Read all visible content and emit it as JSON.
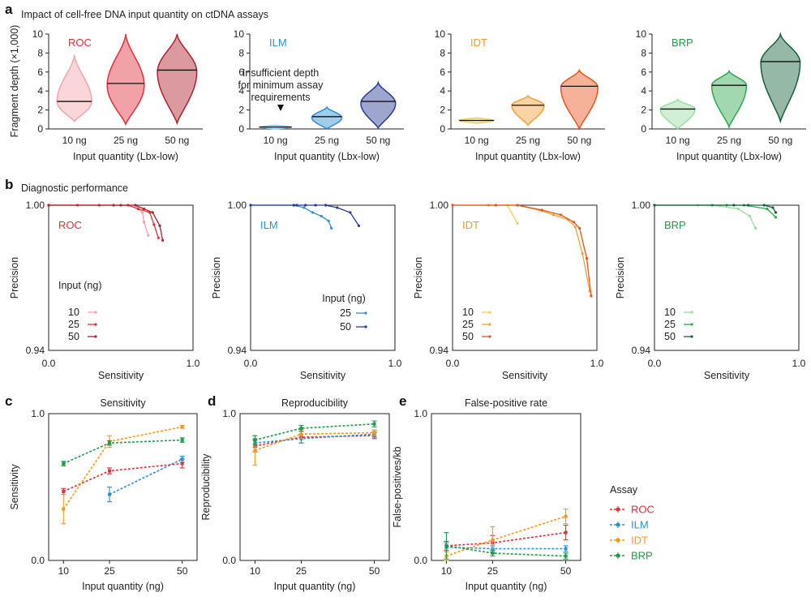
{
  "figure": {
    "panel_letters": {
      "a": "a",
      "b": "b",
      "c": "c",
      "d": "d",
      "e": "e"
    },
    "panel_a_title": "Impact of cell-free DNA input quantity on ctDNA assays",
    "panel_b_title": "Diagnostic performance",
    "violin_ylabel": "Fragment depth (×1,000)",
    "violin_xlabel": "Input quantity (Lbx-low)",
    "pr_xlabel": "Sensitivity",
    "pr_ylabel": "Precision",
    "pr_legend_title": "Input (ng)",
    "line_xlabel": "Input quantity (ng)",
    "insufficient_note": [
      "Insufficient depth",
      "for minimum assay",
      "requirements"
    ],
    "assay_legend_title": "Assay"
  },
  "colors": {
    "ROC": [
      "#f4a3a8",
      "#e0303a",
      "#b0202c"
    ],
    "ILM": [
      "#8ccbee",
      "#2f8fd0",
      "#283a96"
    ],
    "IDT": [
      "#f6cf55",
      "#f2a13a",
      "#e8541c"
    ],
    "BRP": [
      "#9adba2",
      "#2fa84f",
      "#16613a"
    ],
    "line": {
      "ROC": "#e0303a",
      "ILM": "#2f8fd0",
      "IDT": "#f29a1a",
      "BRP": "#1f9a4a"
    }
  },
  "chart_data": [
    {
      "type": "violin",
      "panel": "a",
      "assays": [
        "ROC",
        "ILM",
        "IDT",
        "BRP"
      ],
      "categories": [
        "10 ng",
        "25 ng",
        "50 ng"
      ],
      "ylim": [
        0,
        10
      ],
      "yticks": [
        0,
        2,
        4,
        6,
        8,
        10
      ],
      "ylabel": "Fragment depth (×1,000)",
      "xlabel": "Input quantity (Lbx-low)",
      "series": [
        {
          "name": "ROC",
          "violins": [
            {
              "min": 0.8,
              "max": 7.8,
              "median": 2.9,
              "mode": 2.9,
              "halfwidth": 0.75
            },
            {
              "min": 0.5,
              "max": 10.0,
              "median": 4.8,
              "mode": 4.6,
              "halfwidth": 0.8
            },
            {
              "min": 0.6,
              "max": 10.0,
              "median": 6.2,
              "mode": 6.0,
              "halfwidth": 0.85
            }
          ]
        },
        {
          "name": "ILM",
          "violins": [
            {
              "min": 0.0,
              "max": 0.4,
              "median": 0.2,
              "mode": 0.2,
              "halfwidth": 0.7
            },
            {
              "min": 0.0,
              "max": 2.3,
              "median": 1.3,
              "mode": 1.2,
              "halfwidth": 0.65
            },
            {
              "min": 0.1,
              "max": 4.9,
              "median": 2.9,
              "mode": 2.7,
              "halfwidth": 0.75
            }
          ]
        },
        {
          "name": "IDT",
          "violins": [
            {
              "min": 0.6,
              "max": 1.2,
              "median": 0.9,
              "mode": 0.9,
              "halfwidth": 0.75
            },
            {
              "min": 0.4,
              "max": 3.5,
              "median": 2.5,
              "mode": 2.5,
              "halfwidth": 0.7
            },
            {
              "min": 0.0,
              "max": 6.2,
              "median": 4.5,
              "mode": 4.4,
              "halfwidth": 0.8
            }
          ]
        },
        {
          "name": "BRP",
          "violins": [
            {
              "min": 0.0,
              "max": 3.1,
              "median": 2.1,
              "mode": 2.1,
              "halfwidth": 0.75
            },
            {
              "min": 0.2,
              "max": 6.1,
              "median": 4.6,
              "mode": 4.6,
              "halfwidth": 0.75
            },
            {
              "min": 0.8,
              "max": 10.0,
              "median": 7.1,
              "mode": 7.0,
              "halfwidth": 0.85
            }
          ]
        }
      ]
    },
    {
      "type": "line",
      "panel": "b",
      "title": "Diagnostic performance",
      "xlabel": "Sensitivity",
      "ylabel": "Precision",
      "xlim": [
        0,
        1
      ],
      "ylim": [
        0.94,
        1.0
      ],
      "xticks": [
        "0.0",
        "1.0"
      ],
      "yticks": [
        "1.00",
        "0.94"
      ],
      "series": [
        {
          "assay": "ROC",
          "input": "10",
          "x": [
            0.0,
            0.6,
            0.65,
            0.66,
            0.69
          ],
          "y": [
            1.0,
            1.0,
            0.997,
            0.993,
            0.9875
          ]
        },
        {
          "assay": "ROC",
          "input": "25",
          "x": [
            0.0,
            0.2,
            0.35,
            0.55,
            0.62,
            0.7,
            0.73,
            0.76
          ],
          "y": [
            1.0,
            1.0,
            1.0,
            1.0,
            0.9985,
            0.997,
            0.992,
            0.9865
          ]
        },
        {
          "assay": "ROC",
          "input": "50",
          "x": [
            0.0,
            0.45,
            0.5,
            0.6,
            0.66,
            0.72,
            0.77,
            0.79
          ],
          "y": [
            1.0,
            1.0,
            1.0,
            1.0,
            0.9985,
            0.997,
            0.9915,
            0.9855
          ]
        },
        {
          "assay": "ILM",
          "input": "25",
          "x": [
            0.0,
            0.3,
            0.37,
            0.43,
            0.49,
            0.54,
            0.56
          ],
          "y": [
            1.0,
            1.0,
            0.999,
            0.997,
            0.9955,
            0.9935,
            0.9905
          ]
        },
        {
          "assay": "ILM",
          "input": "50",
          "x": [
            0.0,
            0.3,
            0.32,
            0.38,
            0.45,
            0.52,
            0.6,
            0.69,
            0.75
          ],
          "y": [
            1.0,
            1.0,
            1.0,
            1.0,
            1.0,
            1.0,
            0.999,
            0.997,
            0.9915
          ]
        },
        {
          "assay": "IDT",
          "input": "10",
          "x": [
            0.0,
            0.3,
            0.38,
            0.45
          ],
          "y": [
            1.0,
            1.0,
            1.0,
            0.9925
          ]
        },
        {
          "assay": "IDT",
          "input": "25",
          "x": [
            0.0,
            0.25,
            0.45,
            0.6,
            0.7,
            0.8,
            0.85,
            0.9,
            0.95
          ],
          "y": [
            1.0,
            1.0,
            1.0,
            0.998,
            0.996,
            0.994,
            0.991,
            0.98,
            0.9645
          ]
        },
        {
          "assay": "IDT",
          "input": "50",
          "x": [
            0.0,
            0.3,
            0.45,
            0.62,
            0.75,
            0.84,
            0.88,
            0.93,
            0.96
          ],
          "y": [
            1.0,
            1.0,
            1.0,
            0.998,
            0.996,
            0.993,
            0.9905,
            0.978,
            0.9625
          ]
        },
        {
          "assay": "BRP",
          "input": "10",
          "x": [
            0.0,
            0.3,
            0.4,
            0.58,
            0.66,
            0.7
          ],
          "y": [
            1.0,
            1.0,
            1.0,
            0.9985,
            0.9955,
            0.9905
          ]
        },
        {
          "assay": "BRP",
          "input": "25",
          "x": [
            0.0,
            0.4,
            0.5,
            0.62,
            0.78,
            0.84
          ],
          "y": [
            1.0,
            1.0,
            1.0,
            1.0,
            0.9985,
            0.995
          ]
        },
        {
          "assay": "BRP",
          "input": "50",
          "x": [
            0.0,
            0.55,
            0.65,
            0.76,
            0.82,
            0.84
          ],
          "y": [
            1.0,
            1.0,
            1.0,
            1.0,
            0.999,
            0.997
          ]
        }
      ],
      "legends": {
        "ROC": [
          "10",
          "25",
          "50"
        ],
        "ILM": [
          "25",
          "50"
        ],
        "IDT": [
          "10",
          "25",
          "50"
        ],
        "BRP": [
          "10",
          "25",
          "50"
        ]
      }
    },
    {
      "type": "line",
      "panel": "c",
      "title": "Sensitivity",
      "ylabel": "Sensitivity",
      "xlabel": "Input quantity (ng)",
      "xticks": [
        "10",
        "25",
        "50"
      ],
      "yticks": [
        "0.0",
        "1.0"
      ],
      "ylim": [
        0,
        1
      ],
      "series": [
        {
          "name": "ROC",
          "x": [
            10,
            25,
            50
          ],
          "y": [
            0.47,
            0.61,
            0.66
          ],
          "err": [
            0.02,
            0.02,
            0.03
          ]
        },
        {
          "name": "ILM",
          "x": [
            25,
            50
          ],
          "y": [
            0.45,
            0.69
          ],
          "err": [
            0.05,
            0.02
          ]
        },
        {
          "name": "IDT",
          "x": [
            10,
            25,
            50
          ],
          "y": [
            0.35,
            0.81,
            0.91
          ],
          "err": [
            0.1,
            0.04,
            0.01
          ]
        },
        {
          "name": "BRP",
          "x": [
            10,
            25,
            50
          ],
          "y": [
            0.66,
            0.8,
            0.82
          ],
          "err": [
            0.015,
            0.015,
            0.015
          ]
        }
      ]
    },
    {
      "type": "line",
      "panel": "d",
      "title": "Reproducibility",
      "ylabel": "Reproducibility",
      "xlabel": "Input quantity (ng)",
      "xticks": [
        "10",
        "25",
        "50"
      ],
      "yticks": [
        "0.0",
        "1.0"
      ],
      "ylim": [
        0,
        1
      ],
      "series": [
        {
          "name": "ROC",
          "x": [
            10,
            25,
            50
          ],
          "y": [
            0.78,
            0.84,
            0.85
          ],
          "err": [
            0.04,
            0.04,
            0.02
          ]
        },
        {
          "name": "ILM",
          "x": [
            10,
            25,
            50
          ],
          "y": [
            0.8,
            0.83,
            0.86
          ],
          "err": [
            0.03,
            0.03,
            0.02
          ]
        },
        {
          "name": "IDT",
          "x": [
            10,
            25,
            50
          ],
          "y": [
            0.75,
            0.86,
            0.87
          ],
          "err": [
            0.1,
            0.03,
            0.02
          ]
        },
        {
          "name": "BRP",
          "x": [
            10,
            25,
            50
          ],
          "y": [
            0.82,
            0.9,
            0.93
          ],
          "err": [
            0.03,
            0.02,
            0.02
          ]
        }
      ]
    },
    {
      "type": "line",
      "panel": "e",
      "title": "False-positive rate",
      "ylabel": "False-positives/kb",
      "xlabel": "Input quantity (ng)",
      "xticks": [
        "10",
        "25",
        "50"
      ],
      "yticks": [
        "0.0",
        "1.0"
      ],
      "ylim": [
        0,
        1
      ],
      "series": [
        {
          "name": "ROC",
          "x": [
            10,
            25,
            50
          ],
          "y": [
            0.1,
            0.12,
            0.19
          ],
          "err": [
            0.03,
            0.05,
            0.05
          ]
        },
        {
          "name": "ILM",
          "x": [
            10,
            25,
            50
          ],
          "y": [
            0.09,
            0.08,
            0.08
          ],
          "err": [
            0.03,
            0.02,
            0.02
          ]
        },
        {
          "name": "IDT",
          "x": [
            10,
            25,
            50
          ],
          "y": [
            0.03,
            0.14,
            0.3
          ],
          "err": [
            0.03,
            0.09,
            0.05
          ]
        },
        {
          "name": "BRP",
          "x": [
            10,
            25,
            50
          ],
          "y": [
            0.1,
            0.05,
            0.03
          ],
          "err": [
            0.09,
            0.02,
            0.02
          ]
        }
      ]
    }
  ],
  "assay_legend": [
    "ROC",
    "ILM",
    "IDT",
    "BRP"
  ]
}
